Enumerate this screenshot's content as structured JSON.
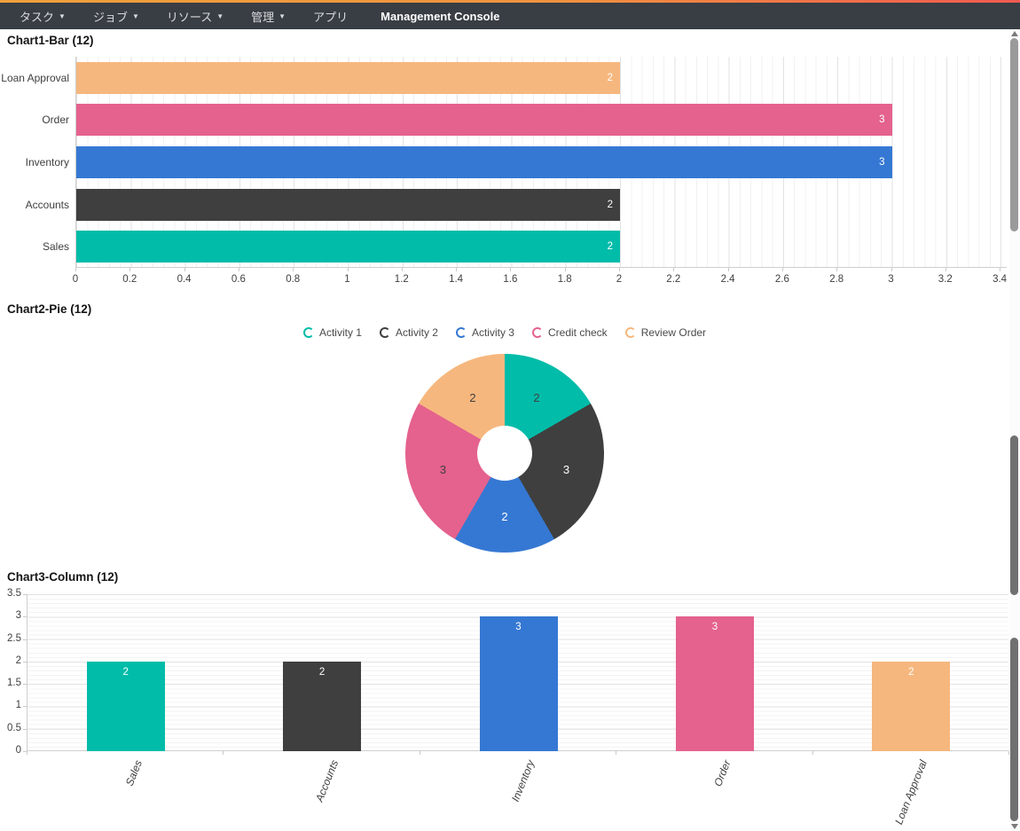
{
  "navbar": {
    "items": [
      {
        "label": "タスク",
        "caret": true
      },
      {
        "label": "ジョブ",
        "caret": true
      },
      {
        "label": "リソース",
        "caret": true
      },
      {
        "label": "管理",
        "caret": true
      },
      {
        "label": "アプリ",
        "caret": false
      },
      {
        "label": "Management Console",
        "caret": false,
        "brand": true
      }
    ]
  },
  "palette": {
    "teal": "#00BCA9",
    "dark": "#3F3F3F",
    "blue": "#3578D3",
    "pink": "#E4628D",
    "orange": "#F6B77E",
    "topbar_gradient_start": "#EFA13C",
    "topbar_gradient_end": "#F25A50",
    "navbar_bg": "#393D44"
  },
  "chart_data": [
    {
      "type": "bar",
      "orientation": "horizontal",
      "title": "Chart1-Bar (12)",
      "categories": [
        "Loan Approval",
        "Order",
        "Inventory",
        "Accounts",
        "Sales"
      ],
      "values": [
        2,
        3,
        3,
        2,
        2
      ],
      "colors": [
        "#F6B77E",
        "#E4628D",
        "#3578D3",
        "#3F3F3F",
        "#00BCA9"
      ],
      "value_label_color": "#FFFFFF",
      "xlim": [
        0,
        3.4
      ],
      "xticks": [
        "0",
        "0.2",
        "0.4",
        "0.6",
        "0.8",
        "1",
        "1.2",
        "1.4",
        "1.6",
        "1.8",
        "2",
        "2.2",
        "2.4",
        "2.6",
        "2.8",
        "3",
        "3.2",
        "3.4"
      ],
      "grid": "on"
    },
    {
      "type": "pie",
      "title": "Chart2-Pie (12)",
      "legend_position": "top-center",
      "slices": [
        {
          "label": "Activity 1",
          "value": 2,
          "color": "#00BCA9",
          "text_color": "#3F3F3F"
        },
        {
          "label": "Activity 2",
          "value": 3,
          "color": "#3F3F3F",
          "text_color": "#FFFFFF"
        },
        {
          "label": "Activity 3",
          "value": 2,
          "color": "#3578D3",
          "text_color": "#FFFFFF"
        },
        {
          "label": "Credit check",
          "value": 3,
          "color": "#E4628D",
          "text_color": "#3F3F3F"
        },
        {
          "label": "Review Order",
          "value": 2,
          "color": "#F6B77E",
          "text_color": "#3F3F3F"
        }
      ],
      "total": 12,
      "donut": true
    },
    {
      "type": "bar",
      "orientation": "vertical",
      "title": "Chart3-Column (12)",
      "categories": [
        "Sales",
        "Accounts",
        "Inventory",
        "Order",
        "Loan Approval"
      ],
      "values": [
        2,
        2,
        3,
        3,
        2
      ],
      "colors": [
        "#00BCA9",
        "#3F3F3F",
        "#3578D3",
        "#E4628D",
        "#F6B77E"
      ],
      "value_label_color": "#FFFFFF",
      "ylim": [
        0,
        3.5
      ],
      "yticks": [
        "0",
        "0.5",
        "1",
        "1.5",
        "2",
        "2.5",
        "3",
        "3.5"
      ],
      "grid": "on"
    }
  ]
}
